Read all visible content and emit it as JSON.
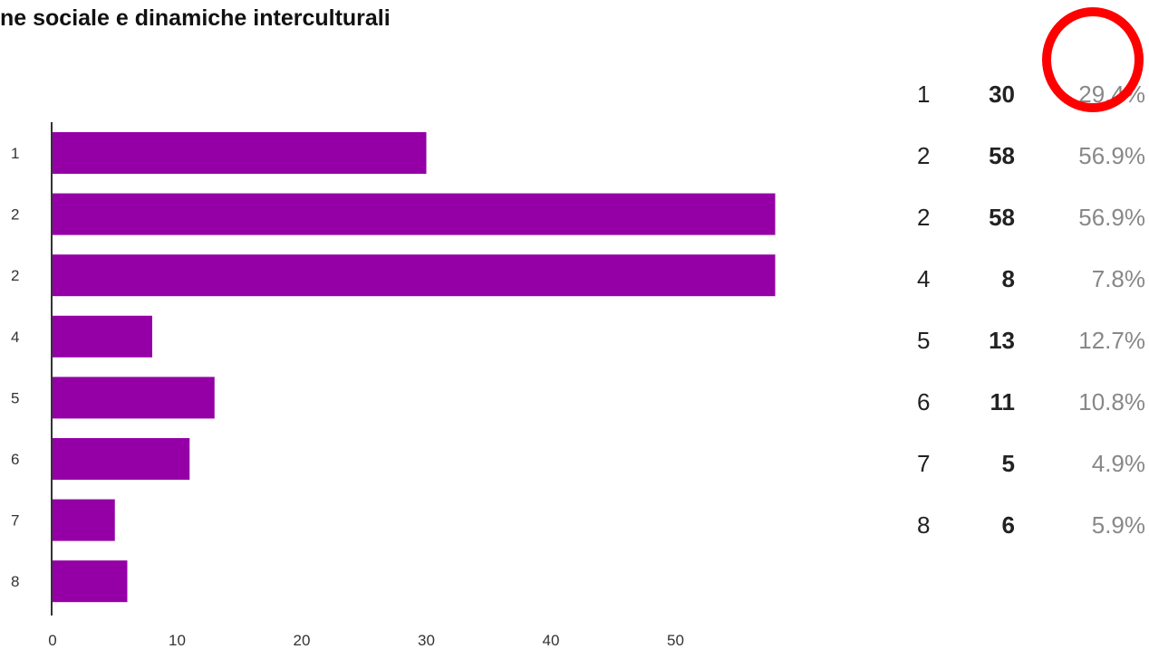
{
  "title": "ne sociale e dinamiche interculturali",
  "colors": {
    "bar": "#9400a6",
    "axis": "#333333",
    "highlight": "#ff0000"
  },
  "chart_data": {
    "type": "bar",
    "orientation": "horizontal",
    "title": "ne sociale e dinamiche interculturali",
    "categories": [
      "1",
      "2",
      "2",
      "4",
      "5",
      "6",
      "7",
      "8"
    ],
    "values": [
      30,
      58,
      58,
      8,
      13,
      11,
      5,
      6
    ],
    "xlim": [
      0,
      58
    ],
    "xticks": [
      0,
      10,
      20,
      30,
      40,
      50
    ],
    "xlabel": "",
    "ylabel": "",
    "grid": false
  },
  "summary": [
    {
      "label": "1",
      "count": "30",
      "percent": "29.4%"
    },
    {
      "label": "2",
      "count": "58",
      "percent": "56.9%"
    },
    {
      "label": "2",
      "count": "58",
      "percent": "56.9%"
    },
    {
      "label": "4",
      "count": "8",
      "percent": "7.8%"
    },
    {
      "label": "5",
      "count": "13",
      "percent": "12.7%"
    },
    {
      "label": "6",
      "count": "11",
      "percent": "10.8%"
    },
    {
      "label": "7",
      "count": "5",
      "percent": "4.9%"
    },
    {
      "label": "8",
      "count": "6",
      "percent": "5.9%"
    }
  ]
}
